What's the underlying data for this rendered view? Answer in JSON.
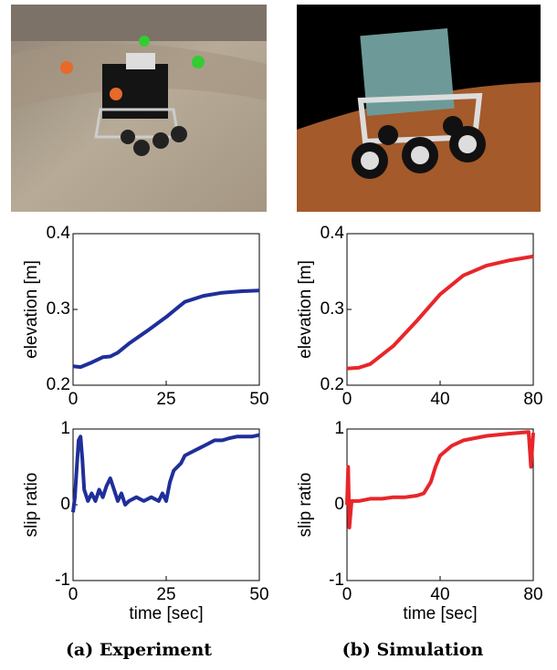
{
  "chart_data": [
    {
      "type": "line",
      "ylabel": "elevation [m]",
      "color": "#1f2f9a",
      "x": [
        0,
        2,
        5,
        8,
        10,
        12,
        15,
        20,
        25,
        28,
        30,
        35,
        40,
        45,
        50
      ],
      "values": [
        0.225,
        0.224,
        0.23,
        0.237,
        0.238,
        0.243,
        0.255,
        0.272,
        0.29,
        0.302,
        0.31,
        0.318,
        0.322,
        0.324,
        0.325
      ],
      "xlim": [
        0,
        50
      ],
      "xticks": [
        0,
        25,
        50
      ],
      "ylim": [
        0.2,
        0.4
      ],
      "yticks": [
        0.2,
        0.3,
        0.4
      ]
    },
    {
      "type": "line",
      "ylabel": "elevation [m]",
      "color": "#e8262a",
      "x": [
        0,
        5,
        10,
        20,
        30,
        40,
        50,
        60,
        70,
        80
      ],
      "values": [
        0.222,
        0.223,
        0.228,
        0.252,
        0.285,
        0.32,
        0.345,
        0.358,
        0.365,
        0.37
      ],
      "xlim": [
        0,
        80
      ],
      "xticks": [
        0,
        40,
        80
      ],
      "ylim": [
        0.2,
        0.4
      ],
      "yticks": [
        0.2,
        0.3,
        0.4
      ]
    },
    {
      "type": "line",
      "ylabel": "slip ratio",
      "xlabel": "time [sec]",
      "color": "#1f2f9a",
      "x": [
        0,
        0.5,
        1,
        1.5,
        2,
        2.5,
        3,
        4,
        5,
        6,
        7,
        8,
        9,
        10,
        11,
        12,
        13,
        14,
        15,
        17,
        19,
        21,
        23,
        24,
        25,
        26,
        27,
        28,
        29,
        30,
        32,
        34,
        36,
        38,
        40,
        42,
        44,
        46,
        48,
        50
      ],
      "values": [
        -0.1,
        0.1,
        0.5,
        0.85,
        0.9,
        0.6,
        0.2,
        0.05,
        0.15,
        0.05,
        0.2,
        0.1,
        0.25,
        0.35,
        0.2,
        0.05,
        0.15,
        0.0,
        0.05,
        0.1,
        0.05,
        0.1,
        0.05,
        0.15,
        0.05,
        0.3,
        0.45,
        0.5,
        0.55,
        0.65,
        0.7,
        0.75,
        0.8,
        0.85,
        0.85,
        0.88,
        0.9,
        0.9,
        0.9,
        0.92
      ],
      "xlim": [
        0,
        50
      ],
      "xticks": [
        0,
        25,
        50
      ],
      "ylim": [
        -1,
        1
      ],
      "yticks": [
        -1,
        0,
        1
      ]
    },
    {
      "type": "line",
      "ylabel": "slip ratio",
      "xlabel": "time [sec]",
      "color": "#e8262a",
      "x": [
        0,
        0.5,
        1,
        2,
        5,
        10,
        15,
        20,
        25,
        30,
        33,
        36,
        38,
        40,
        45,
        50,
        60,
        70,
        78,
        79,
        80
      ],
      "values": [
        0,
        0.5,
        -0.3,
        0.05,
        0.05,
        0.08,
        0.08,
        0.1,
        0.1,
        0.12,
        0.15,
        0.3,
        0.5,
        0.65,
        0.78,
        0.85,
        0.91,
        0.94,
        0.96,
        0.5,
        0.95
      ],
      "xlim": [
        0,
        80
      ],
      "xticks": [
        0,
        40,
        80
      ],
      "ylim": [
        -1,
        1
      ],
      "yticks": [
        -1,
        0,
        1
      ]
    }
  ],
  "captions": [
    "(a) Experiment",
    "(b) Simulation"
  ]
}
